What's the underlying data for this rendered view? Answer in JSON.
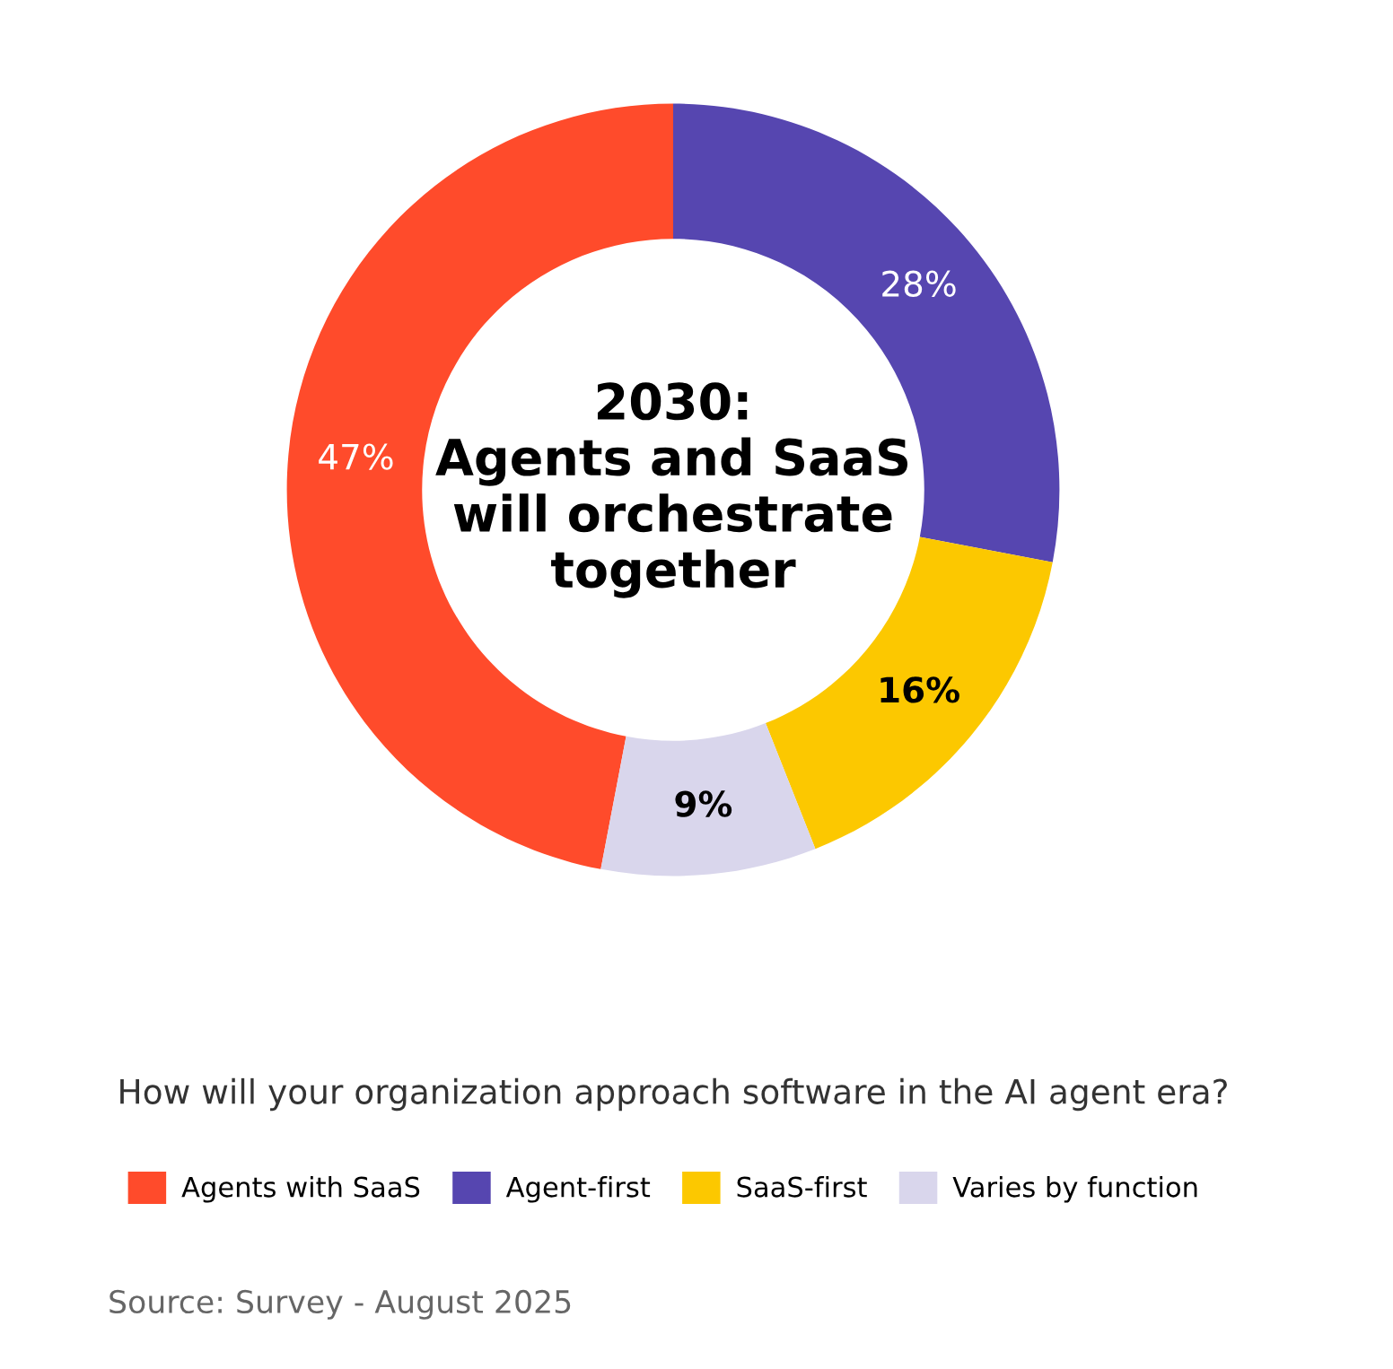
{
  "chart_data": {
    "type": "donut",
    "title": "2030:\nAgents and SaaS\nwill orchestrate\ntogether",
    "subtitle": "How will your organization approach software in the AI agent era?",
    "categories": [
      "Agents with SaaS",
      "Agent-first",
      "SaaS-first",
      "Varies by function"
    ],
    "values": [
      47,
      28,
      16,
      9
    ],
    "colors": [
      "#ff4b2b",
      "#5646b0",
      "#fcc800",
      "#d9d6ec"
    ],
    "value_labels": [
      "47%",
      "28%",
      "16%",
      "9%"
    ],
    "legend": "bottom",
    "annotations": [
      "Source: Survey - August 2025"
    ]
  }
}
